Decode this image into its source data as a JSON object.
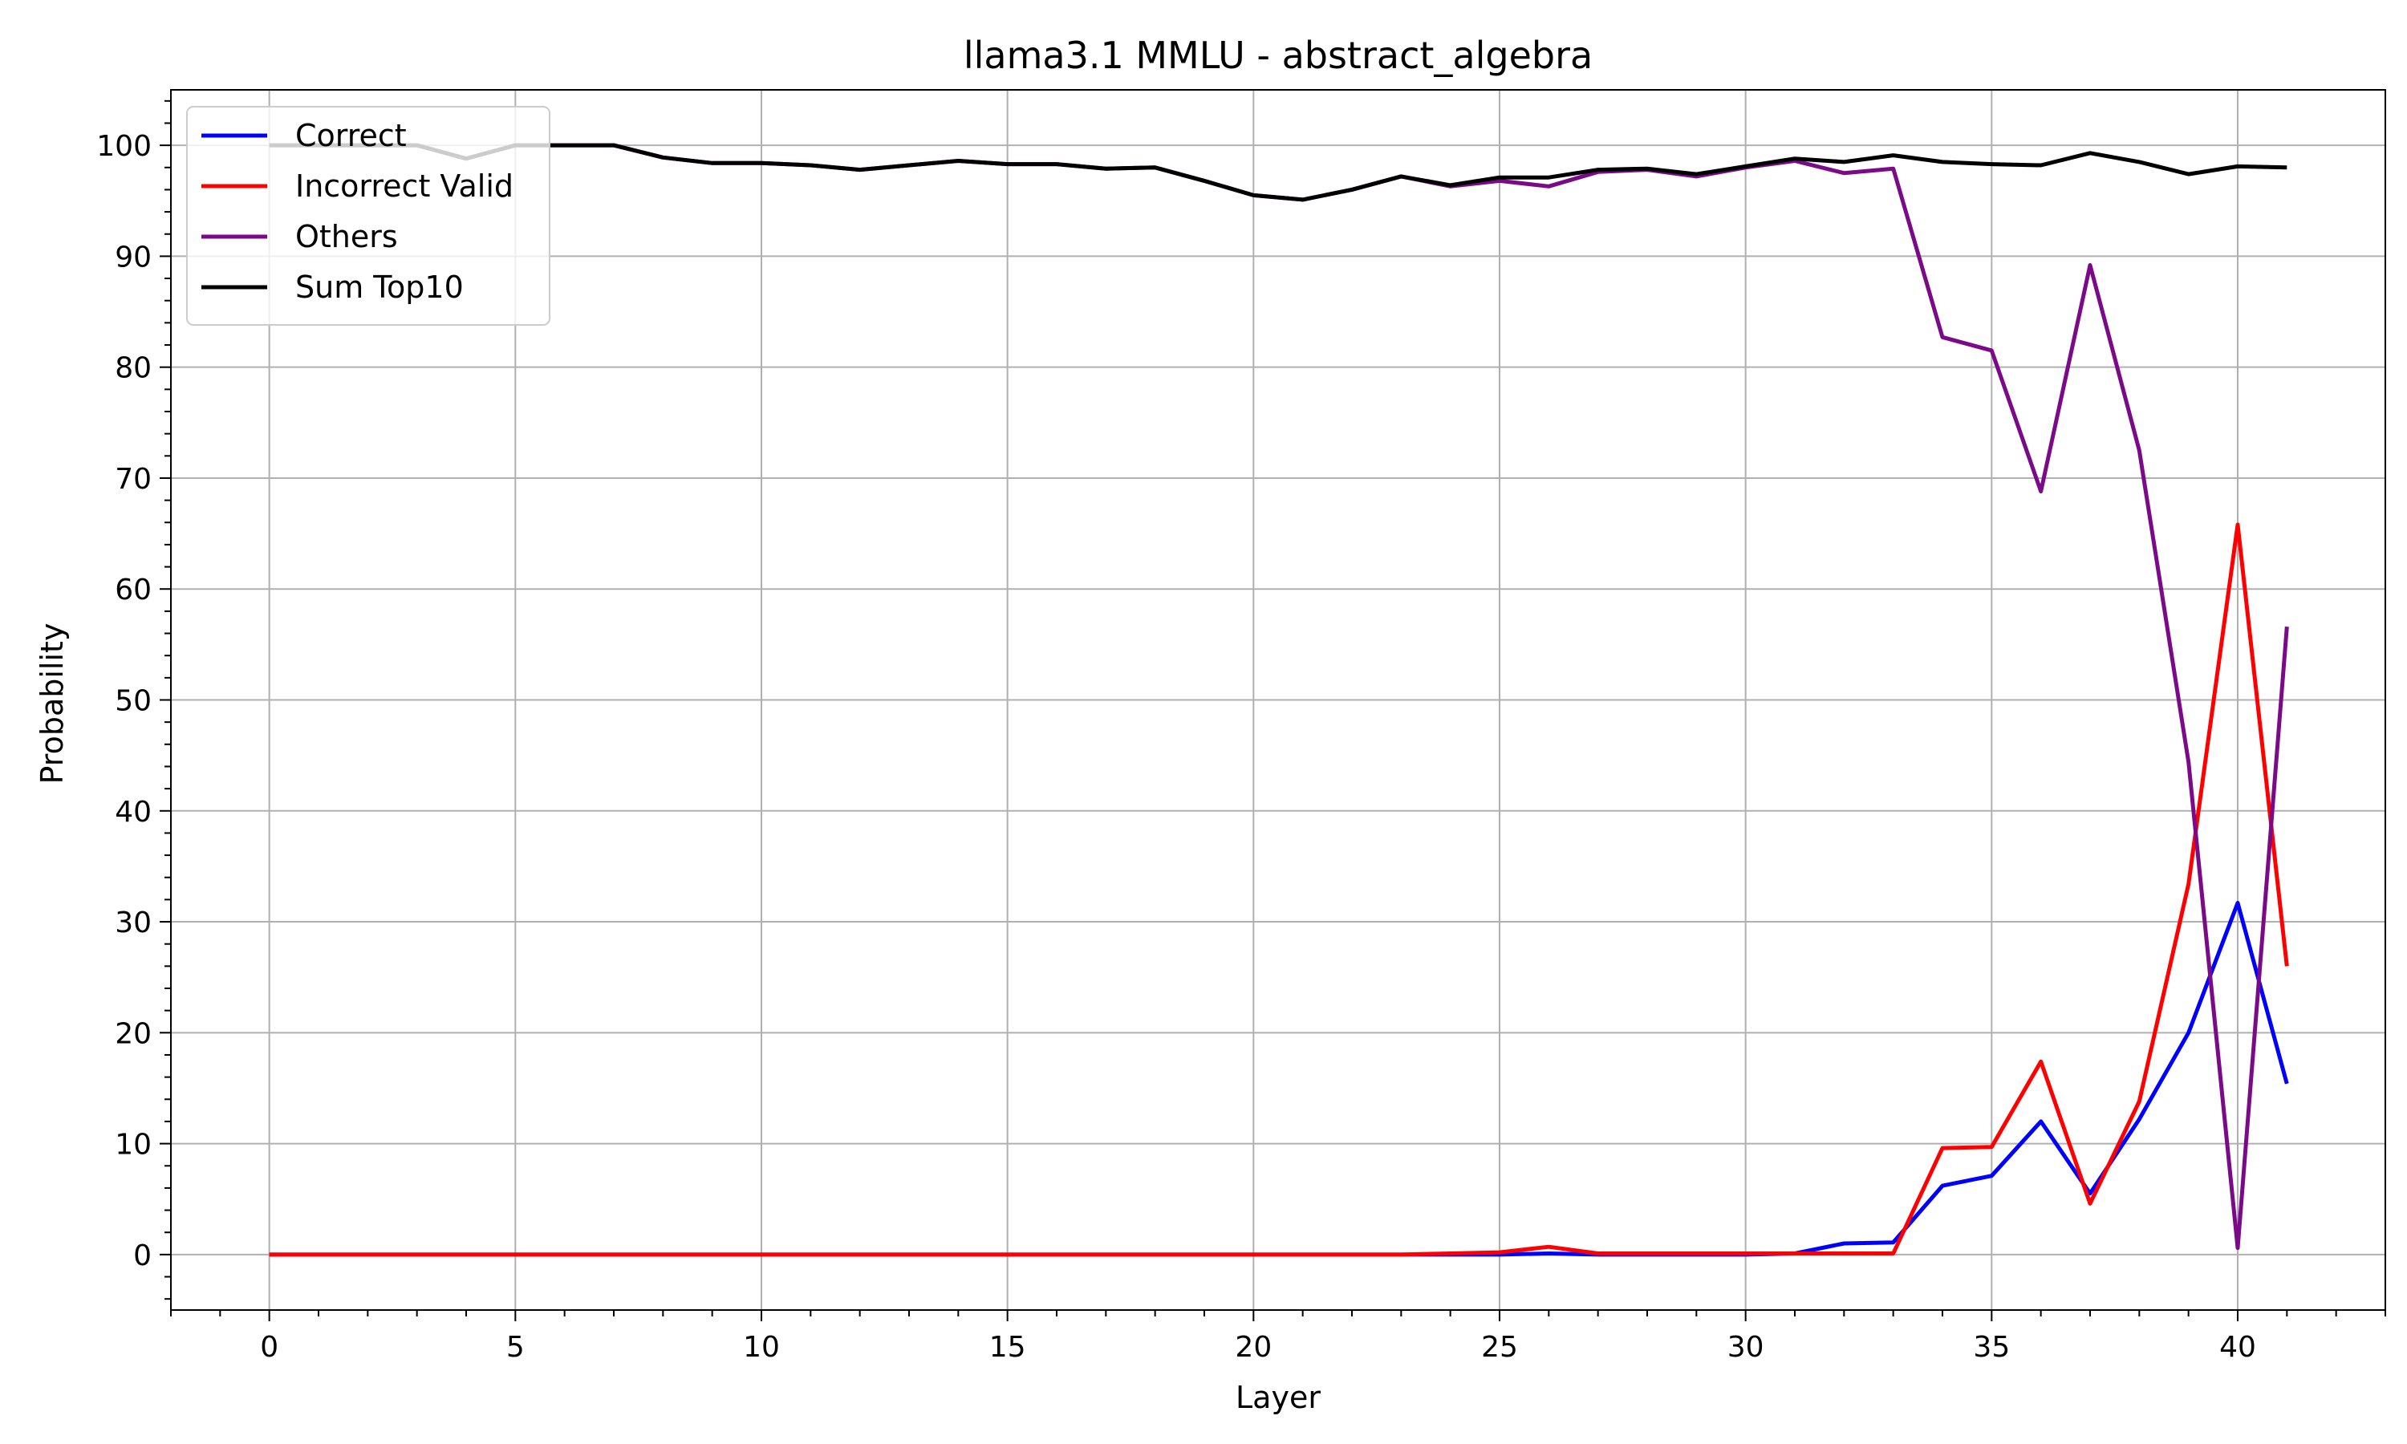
{
  "chart_data": {
    "type": "line",
    "title": "llama3.1 MMLU - abstract_algebra",
    "xlabel": "Layer",
    "ylabel": "Probability",
    "xlim": [
      -2,
      43
    ],
    "ylim": [
      -5,
      105
    ],
    "xticks": [
      0,
      5,
      10,
      15,
      20,
      25,
      30,
      35,
      40
    ],
    "yticks": [
      0,
      10,
      20,
      30,
      40,
      50,
      60,
      70,
      80,
      90,
      100
    ],
    "grid": true,
    "legend": {
      "position": "top-left"
    },
    "x": [
      0,
      1,
      2,
      3,
      4,
      5,
      6,
      7,
      8,
      9,
      10,
      11,
      12,
      13,
      14,
      15,
      16,
      17,
      18,
      19,
      20,
      21,
      22,
      23,
      24,
      25,
      26,
      27,
      28,
      29,
      30,
      31,
      32,
      33,
      34,
      35,
      36,
      37,
      38,
      39,
      40,
      41
    ],
    "series": [
      {
        "name": "Correct",
        "color": "#0000ff",
        "values": [
          0,
          0,
          0,
          0,
          0,
          0,
          0,
          0,
          0,
          0,
          0,
          0,
          0,
          0,
          0,
          0,
          0,
          0,
          0,
          0,
          0,
          0,
          0,
          0,
          0,
          0,
          0.1,
          0,
          0,
          0,
          0,
          0.1,
          1.0,
          1.1,
          6.2,
          7.1,
          12.0,
          5.5,
          12.2,
          20.0,
          31.7,
          15.4
        ]
      },
      {
        "name": "Incorrect Valid",
        "color": "#ff0000",
        "values": [
          0,
          0,
          0,
          0,
          0,
          0,
          0,
          0,
          0,
          0,
          0,
          0,
          0,
          0,
          0,
          0,
          0,
          0,
          0,
          0,
          0,
          0,
          0,
          0,
          0.1,
          0.2,
          0.7,
          0.1,
          0.1,
          0.1,
          0.1,
          0.1,
          0.1,
          0.1,
          9.6,
          9.7,
          17.4,
          4.6,
          13.8,
          33.4,
          65.8,
          26.0
        ]
      },
      {
        "name": "Others",
        "color": "#7b0a89",
        "values": [
          100,
          100,
          100,
          100,
          98.8,
          100,
          100,
          100,
          98.9,
          98.4,
          98.4,
          98.2,
          97.8,
          98.2,
          98.6,
          98.3,
          98.3,
          97.9,
          98.0,
          96.8,
          95.5,
          95.1,
          96.0,
          97.2,
          96.3,
          96.8,
          96.3,
          97.6,
          97.8,
          97.2,
          98.0,
          98.6,
          97.5,
          97.9,
          82.7,
          81.5,
          68.8,
          89.2,
          72.5,
          44.4,
          0.6,
          56.6
        ]
      },
      {
        "name": "Sum Top10",
        "color": "#000000",
        "values": [
          100,
          100,
          100,
          100,
          98.8,
          100,
          100,
          100,
          98.9,
          98.4,
          98.4,
          98.2,
          97.8,
          98.2,
          98.6,
          98.3,
          98.3,
          97.9,
          98.0,
          96.8,
          95.5,
          95.1,
          96.0,
          97.2,
          96.4,
          97.1,
          97.1,
          97.8,
          97.9,
          97.4,
          98.1,
          98.8,
          98.5,
          99.1,
          98.5,
          98.3,
          98.2,
          99.3,
          98.5,
          97.4,
          98.1,
          98.0
        ]
      }
    ]
  }
}
